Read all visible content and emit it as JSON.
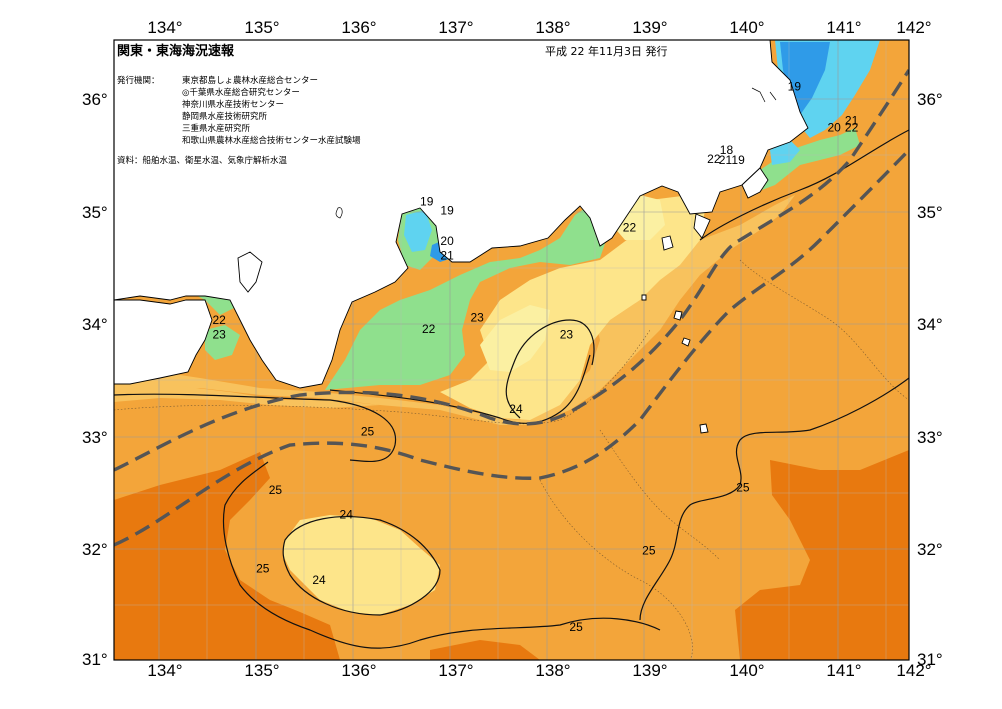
{
  "header": {
    "title": "関東・東海海況速報",
    "date": "平成 22 年11月3日 発行",
    "issuers_label": "発行機関：",
    "issuers": [
      "東京都島しょ農林水産総合センター",
      "◎千葉県水産総合研究センター",
      "神奈川県水産技術センター",
      "静岡県水産技術研究所",
      "三重県水産研究所",
      "和歌山県農林水産総合技術センター水産試験場"
    ],
    "sources": "資料：船舶水温、衛星水温、気象庁解析水温"
  },
  "axes": {
    "lon_labels": [
      "134°",
      "135°",
      "136°",
      "137°",
      "138°",
      "139°",
      "140°",
      "141°",
      "142°"
    ],
    "lat_labels": [
      "36°",
      "35°",
      "34°",
      "33°",
      "32°",
      "31°"
    ]
  },
  "palette": {
    "deep_orange": "#e8790f",
    "orange": "#f3a53a",
    "light_orange": "#f8c25d",
    "yellow": "#fde58a",
    "pale_yellow": "#fbf0a2",
    "green": "#8fe08d",
    "cyan": "#5fd3f0",
    "blue": "#2f9be8",
    "land": "#ffffff",
    "kuroshio_line": "#555555"
  },
  "contour_labels": [
    {
      "text": "19",
      "lon": 140.55,
      "lat": 36.1
    },
    {
      "text": "21",
      "lon": 141.14,
      "lat": 35.8
    },
    {
      "text": "20",
      "lon": 140.96,
      "lat": 35.74
    },
    {
      "text": "22",
      "lon": 141.14,
      "lat": 35.74
    },
    {
      "text": "18",
      "lon": 139.85,
      "lat": 35.54
    },
    {
      "text": "22",
      "lon": 139.72,
      "lat": 35.46
    },
    {
      "text": "21",
      "lon": 139.84,
      "lat": 35.45
    },
    {
      "text": "19",
      "lon": 139.97,
      "lat": 35.45
    },
    {
      "text": "22",
      "lon": 138.85,
      "lat": 34.85
    },
    {
      "text": "19",
      "lon": 136.76,
      "lat": 35.08
    },
    {
      "text": "19",
      "lon": 136.97,
      "lat": 35.0
    },
    {
      "text": "20",
      "lon": 136.97,
      "lat": 34.73
    },
    {
      "text": "21",
      "lon": 136.97,
      "lat": 34.6
    },
    {
      "text": "22",
      "lon": 134.62,
      "lat": 34.03
    },
    {
      "text": "23",
      "lon": 134.62,
      "lat": 33.9
    },
    {
      "text": "22",
      "lon": 136.78,
      "lat": 33.95
    },
    {
      "text": "23",
      "lon": 137.28,
      "lat": 34.05
    },
    {
      "text": "23",
      "lon": 138.2,
      "lat": 33.9
    },
    {
      "text": "24",
      "lon": 137.68,
      "lat": 33.24
    },
    {
      "text": "25",
      "lon": 136.15,
      "lat": 33.04
    },
    {
      "text": "25",
      "lon": 135.2,
      "lat": 32.52
    },
    {
      "text": "24",
      "lon": 135.93,
      "lat": 32.3
    },
    {
      "text": "25",
      "lon": 135.07,
      "lat": 31.82
    },
    {
      "text": "24",
      "lon": 135.65,
      "lat": 31.72
    },
    {
      "text": "25",
      "lon": 139.05,
      "lat": 31.98
    },
    {
      "text": "25",
      "lon": 140.02,
      "lat": 32.54
    },
    {
      "text": "25",
      "lon": 138.3,
      "lat": 31.3
    }
  ]
}
